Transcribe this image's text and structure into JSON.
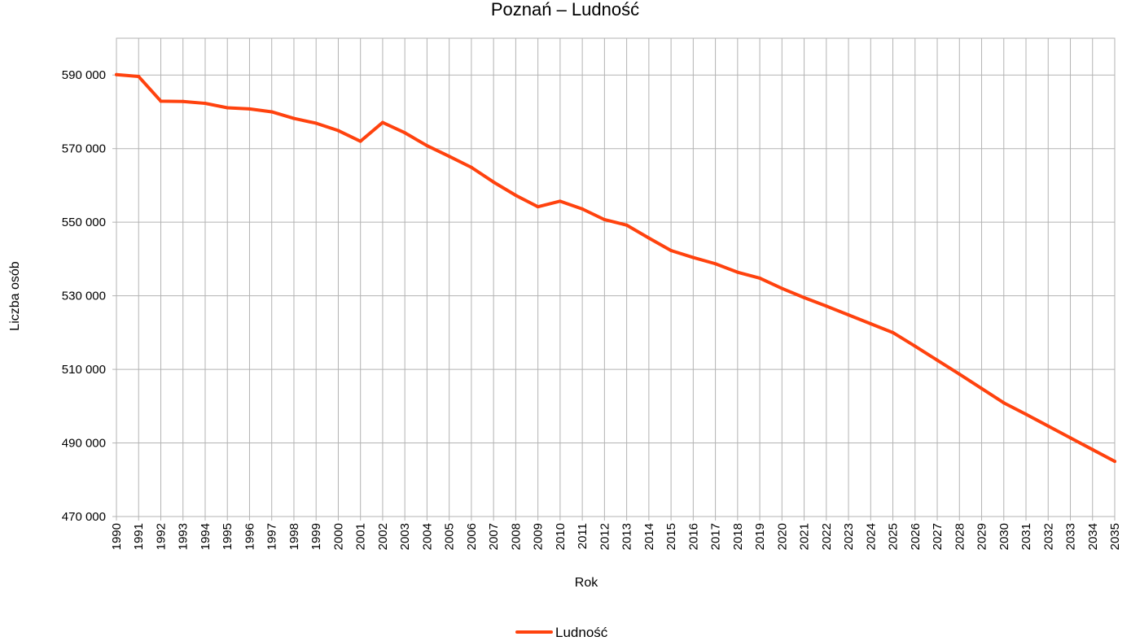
{
  "chart_data": {
    "type": "line",
    "title": "Poznań – Ludność",
    "xlabel": "Rok",
    "ylabel": "Liczba osób",
    "x": [
      1990,
      1991,
      1992,
      1993,
      1994,
      1995,
      1996,
      1997,
      1998,
      1999,
      2000,
      2001,
      2002,
      2003,
      2004,
      2005,
      2006,
      2007,
      2008,
      2009,
      2010,
      2011,
      2012,
      2013,
      2014,
      2015,
      2016,
      2017,
      2018,
      2019,
      2020,
      2021,
      2022,
      2023,
      2024,
      2025,
      2026,
      2027,
      2028,
      2029,
      2030,
      2031,
      2032,
      2033,
      2034,
      2035
    ],
    "x_tick_labels": [
      "1990",
      "1991",
      "1992",
      "1993",
      "1994",
      "1995",
      "1996",
      "1997",
      "1998",
      "1999",
      "2000",
      "2001",
      "2002",
      "2003",
      "2004",
      "2005",
      "2006",
      "2007",
      "2008",
      "2009",
      "2010",
      "2011",
      "2012",
      "2013",
      "2014",
      "2015",
      "2016",
      "2017",
      "2018",
      "2019",
      "2020",
      "2021",
      "2022",
      "2023",
      "2024",
      "2025",
      "2026",
      "2027",
      "2028",
      "2029",
      "2030",
      "2031",
      "2032",
      "2033",
      "2034",
      "2035"
    ],
    "y_ticks": [
      470000,
      490000,
      510000,
      530000,
      550000,
      570000,
      590000
    ],
    "y_tick_labels": [
      "470 000",
      "490 000",
      "510 000",
      "530 000",
      "550 000",
      "570 000",
      "590 000"
    ],
    "ylim": [
      470000,
      600000
    ],
    "grid": true,
    "legend_position": "bottom",
    "series": [
      {
        "name": "Ludność",
        "color": "#ff420e",
        "values": [
          590100,
          589600,
          582900,
          582800,
          582300,
          581100,
          580800,
          580000,
          578200,
          576900,
          574900,
          572000,
          577100,
          574300,
          570800,
          567900,
          564900,
          560900,
          557300,
          554200,
          555700,
          553600,
          550700,
          549200,
          545700,
          542300,
          540400,
          538700,
          536400,
          534800,
          532000,
          529500,
          527200,
          524800,
          522400,
          520000,
          516300,
          512500,
          508700,
          504800,
          500900,
          497800,
          494600,
          491400,
          488200,
          485000
        ]
      }
    ]
  }
}
